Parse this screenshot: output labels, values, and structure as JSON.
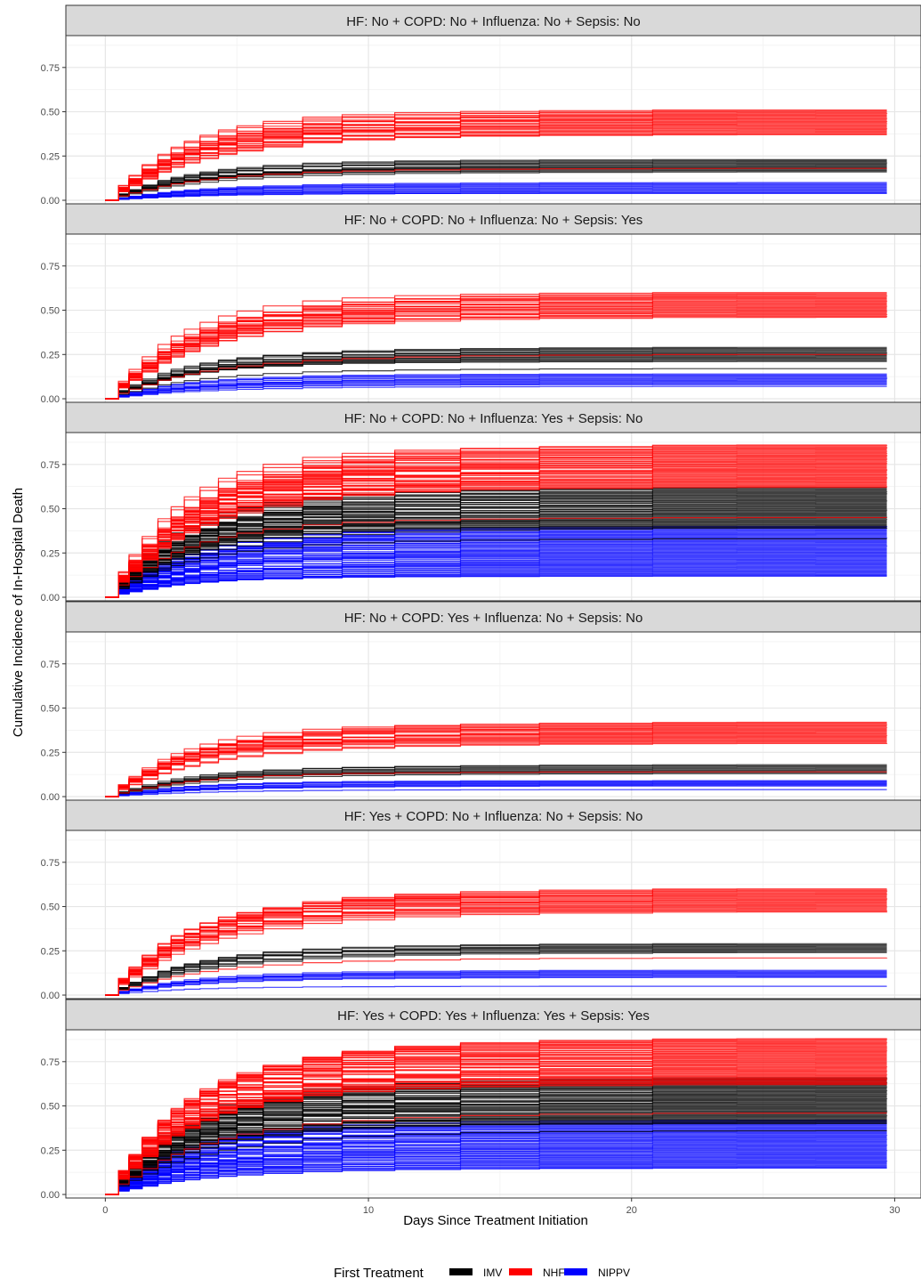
{
  "chart_data": {
    "type": "line",
    "step": true,
    "ylabel": "Cumulative Incidence of In-Hospital Death",
    "xlabel": "Days Since Treatment Initiation",
    "x_ticks": [
      0,
      10,
      20,
      30
    ],
    "y_ticks": [
      "0.00",
      "0.25",
      "0.50",
      "0.75"
    ],
    "xlim": [
      -1.5,
      31
    ],
    "ylim": [
      -0.02,
      0.93
    ],
    "grid": true,
    "legend": {
      "title": "First Treatment",
      "position": "bottom",
      "items": [
        {
          "label": "IMV",
          "color": "#000000"
        },
        {
          "label": "NHF",
          "color": "#ff0000"
        },
        {
          "label": "NIPPV",
          "color": "#0000ff"
        }
      ]
    },
    "series_colors": {
      "IMV": "#000000",
      "NHF": "#ff0000",
      "NIPPV": "#0000ff"
    },
    "panels": [
      {
        "label": "HF: No + COPD: No + Influenza: No + Sepsis: No",
        "final_ranges": {
          "NHF": [
            0.37,
            0.51
          ],
          "IMV": [
            0.16,
            0.23
          ],
          "NIPPV": [
            0.04,
            0.1
          ]
        },
        "extra_lines": {
          "NHF": [
            0.18
          ],
          "IMV": [],
          "NIPPV": [
            0.04
          ]
        }
      },
      {
        "label": "HF: No + COPD: No + Influenza: No + Sepsis: Yes",
        "final_ranges": {
          "NHF": [
            0.46,
            0.6
          ],
          "IMV": [
            0.21,
            0.29
          ],
          "NIPPV": [
            0.08,
            0.14
          ]
        },
        "extra_lines": {
          "NHF": [
            0.25
          ],
          "IMV": [
            0.17
          ],
          "NIPPV": [
            0.07
          ]
        }
      },
      {
        "label": "HF: No + COPD: No + Influenza: Yes + Sepsis: No",
        "final_ranges": {
          "NHF": [
            0.62,
            0.86
          ],
          "IMV": [
            0.39,
            0.62
          ],
          "NIPPV": [
            0.12,
            0.4
          ]
        },
        "extra_lines": {
          "NHF": [
            0.45
          ],
          "IMV": [
            0.33
          ],
          "NIPPV": [
            0.12
          ]
        }
      },
      {
        "label": "HF: No + COPD: Yes + Influenza: No + Sepsis: No",
        "final_ranges": {
          "NHF": [
            0.3,
            0.42
          ],
          "IMV": [
            0.13,
            0.18
          ],
          "NIPPV": [
            0.06,
            0.09
          ]
        },
        "extra_lines": {
          "NHF": [
            0.14
          ],
          "IMV": [],
          "NIPPV": [
            0.04
          ]
        }
      },
      {
        "label": "HF: Yes + COPD: No + Influenza: No + Sepsis: No",
        "final_ranges": {
          "NHF": [
            0.47,
            0.6
          ],
          "IMV": [
            0.24,
            0.29
          ],
          "NIPPV": [
            0.1,
            0.14
          ]
        },
        "extra_lines": {
          "NHF": [
            0.21
          ],
          "IMV": [],
          "NIPPV": [
            0.05
          ]
        }
      },
      {
        "label": "HF: Yes + COPD: Yes + Influenza: Yes + Sepsis: Yes",
        "final_ranges": {
          "NHF": [
            0.62,
            0.88
          ],
          "IMV": [
            0.4,
            0.66
          ],
          "NIPPV": [
            0.15,
            0.42
          ]
        },
        "extra_lines": {
          "NHF": [
            0.46
          ],
          "IMV": [
            0.36
          ],
          "NIPPV": [
            0.15
          ]
        }
      }
    ]
  }
}
